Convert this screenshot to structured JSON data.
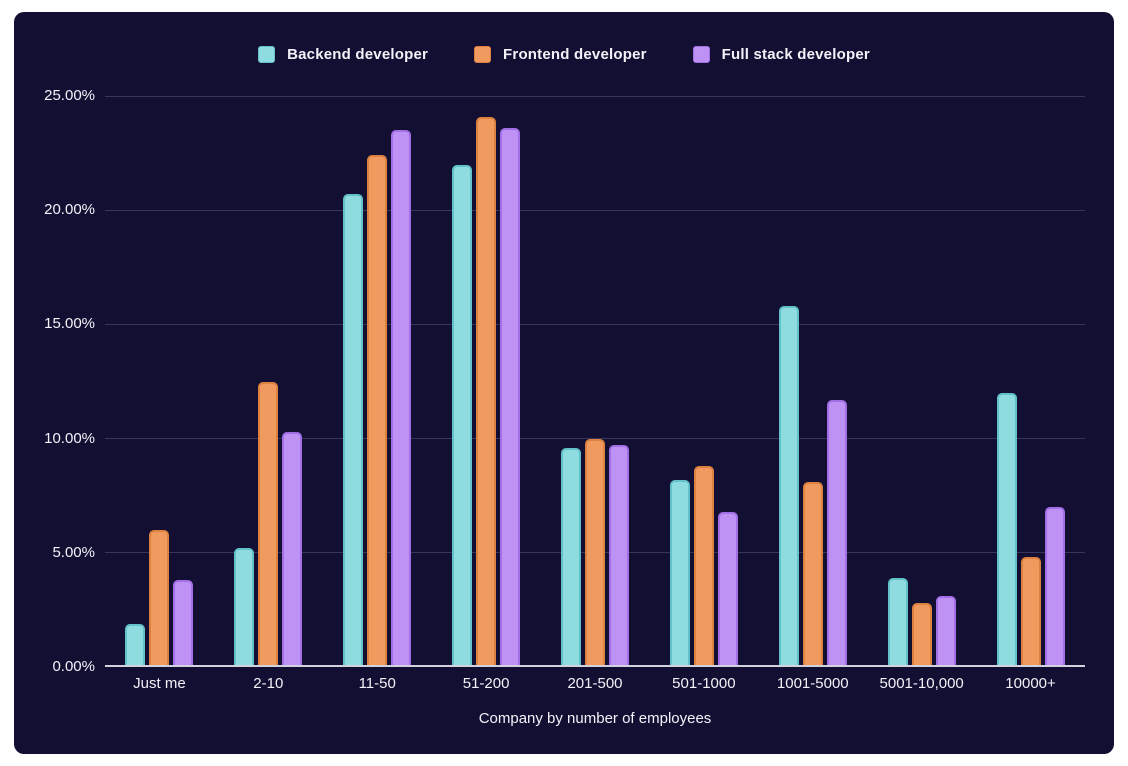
{
  "colors": {
    "page_background": "#ffffff",
    "card_background": "#120F33",
    "grid_line": "#38345A",
    "axis_baseline": "#D2D2DE",
    "text": "#F3F2F8"
  },
  "chart_data": {
    "type": "bar",
    "title": "",
    "xlabel": "Company by number of employees",
    "ylabel": "",
    "ylim": [
      0,
      25
    ],
    "ytick_step": 5,
    "y_tick_labels": [
      "0.00%",
      "5.00%",
      "10.00%",
      "15.00%",
      "20.00%",
      "25.00%"
    ],
    "grid": true,
    "legend_position": "top",
    "categories": [
      "Just me",
      "2-10",
      "11-50",
      "51-200",
      "201-500",
      "501-1000",
      "1001-5000",
      "5001-10,000",
      "10000+"
    ],
    "series": [
      {
        "name": "Backend developer",
        "color": "#8EDCE0",
        "border_color": "#63C2C9",
        "values": [
          1.9,
          5.2,
          20.7,
          22.0,
          9.6,
          8.2,
          15.8,
          3.9,
          12.0
        ]
      },
      {
        "name": "Frontend developer",
        "color": "#F09A60",
        "border_color": "#DD8140",
        "values": [
          6.0,
          12.5,
          22.4,
          24.1,
          10.0,
          8.8,
          8.1,
          2.8,
          4.8
        ]
      },
      {
        "name": "Full stack developer",
        "color": "#BE92F5",
        "border_color": "#A36FE6",
        "values": [
          3.8,
          10.3,
          23.5,
          23.6,
          9.7,
          6.8,
          11.7,
          3.1,
          7.0
        ]
      }
    ]
  }
}
